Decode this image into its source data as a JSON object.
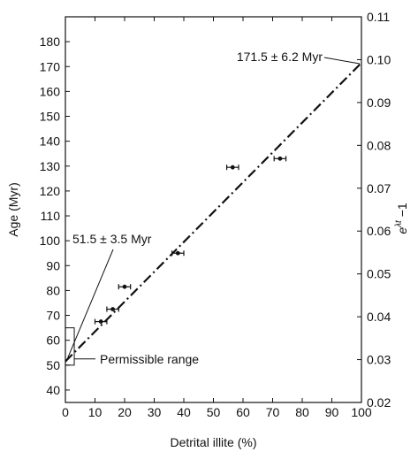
{
  "chart_data": {
    "type": "scatter",
    "title": "",
    "xlabel": "Detrital illite (%)",
    "ylabel": "Age (Myr)",
    "ylabel_right": "e^{λt} −1",
    "xlim": [
      0,
      100
    ],
    "ylim": [
      35,
      190
    ],
    "ylim_right": [
      0.02,
      0.11
    ],
    "x_ticks": [
      0,
      10,
      20,
      30,
      40,
      50,
      60,
      70,
      80,
      90,
      100
    ],
    "x_tick_labels": [
      "0",
      "10",
      "20",
      "30",
      "40",
      "50",
      "60",
      "70",
      "80",
      "90",
      "100"
    ],
    "y_ticks": [
      40,
      50,
      60,
      70,
      80,
      90,
      100,
      110,
      120,
      130,
      140,
      150,
      160,
      170,
      180
    ],
    "y_tick_labels": [
      "40",
      "50",
      "60",
      "70",
      "80",
      "90",
      "100",
      "110",
      "120",
      "130",
      "140",
      "150",
      "160",
      "170",
      "180"
    ],
    "y_right_ticks": [
      0.02,
      0.03,
      0.04,
      0.05,
      0.06,
      0.07,
      0.08,
      0.09,
      0.1,
      0.11
    ],
    "y_right_tick_labels": [
      "0.02",
      "0.03",
      "0.04",
      "0.05",
      "0.06",
      "0.07",
      "0.08",
      "0.09",
      "0.10",
      "0.11"
    ],
    "grid": false,
    "series": [
      {
        "points": [
          {
            "x": 12,
            "y": 67.5,
            "xerr": 2
          },
          {
            "x": 16,
            "y": 72.5,
            "xerr": 2
          },
          {
            "x": 20,
            "y": 81.5,
            "xerr": 2
          },
          {
            "x": 38,
            "y": 95,
            "xerr": 2
          },
          {
            "x": 56.5,
            "y": 129.5,
            "xerr": 2
          },
          {
            "x": 72.5,
            "y": 133,
            "xerr": 2
          }
        ]
      }
    ],
    "fit_line": {
      "style": "dash-dot",
      "x": [
        0,
        100
      ],
      "y": [
        51.5,
        171.5
      ]
    },
    "permissible_range": {
      "x": [
        0,
        3
      ],
      "y": [
        50,
        65
      ]
    },
    "annotations": {
      "top": "171.5 ± 6.2 Myr",
      "low": "51.5 ± 3.5 Myr",
      "range": "Permissible range"
    }
  }
}
